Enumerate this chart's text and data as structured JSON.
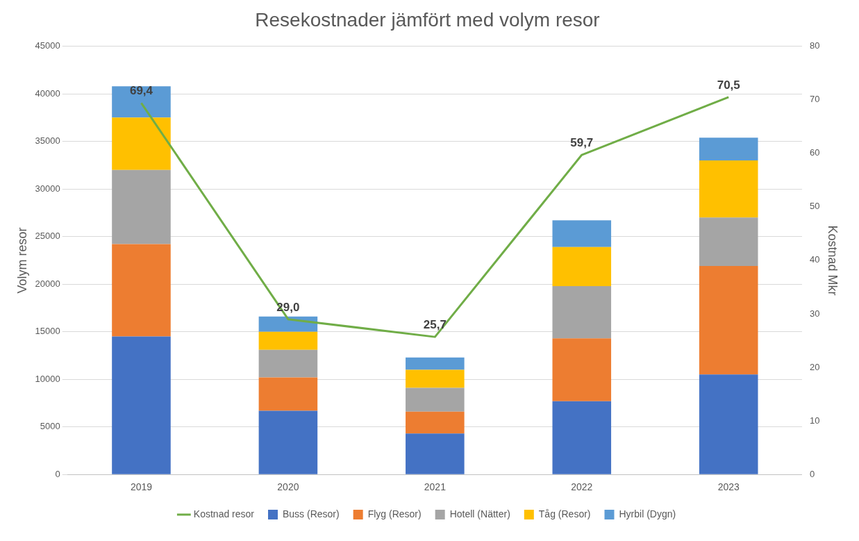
{
  "chart_data": {
    "type": "bar",
    "title": "Resekostnader jämfört med volym resor",
    "ylabel": "Volym resor",
    "y2label": "Kostnad Mkr",
    "categories": [
      "2019",
      "2020",
      "2021",
      "2022",
      "2023"
    ],
    "stacked": true,
    "series": [
      {
        "name": "Buss (Resor)",
        "color": "#4472c4",
        "values": [
          14500,
          6700,
          4300,
          7700,
          10500
        ]
      },
      {
        "name": "Flyg (Resor)",
        "color": "#ed7d31",
        "values": [
          9700,
          3500,
          2300,
          6600,
          11400
        ]
      },
      {
        "name": "Hotell (Nätter)",
        "color": "#a5a5a5",
        "values": [
          7800,
          2900,
          2500,
          5500,
          5100
        ]
      },
      {
        "name": "Tåg (Resor)",
        "color": "#ffc000",
        "values": [
          5500,
          1900,
          1900,
          4100,
          6000
        ]
      },
      {
        "name": "Hyrbil (Dygn)",
        "color": "#5b9bd5",
        "values": [
          3300,
          1600,
          1300,
          2800,
          2400
        ]
      },
      {
        "name": "Kostnad resor",
        "type": "line",
        "axis": "y2",
        "color": "#70ad47",
        "values": [
          69.4,
          29.0,
          25.7,
          59.7,
          70.5
        ],
        "value_labels": [
          "69,4",
          "29,0",
          "25,7",
          "59,7",
          "70,5"
        ]
      }
    ],
    "ylim": [
      0,
      45000
    ],
    "yticks": [
      0,
      5000,
      10000,
      15000,
      20000,
      25000,
      30000,
      35000,
      40000,
      45000
    ],
    "y2lim": [
      0,
      80
    ],
    "y2ticks": [
      0,
      10,
      20,
      30,
      40,
      50,
      60,
      70,
      80
    ],
    "grid": "y",
    "legend": "bottom"
  }
}
